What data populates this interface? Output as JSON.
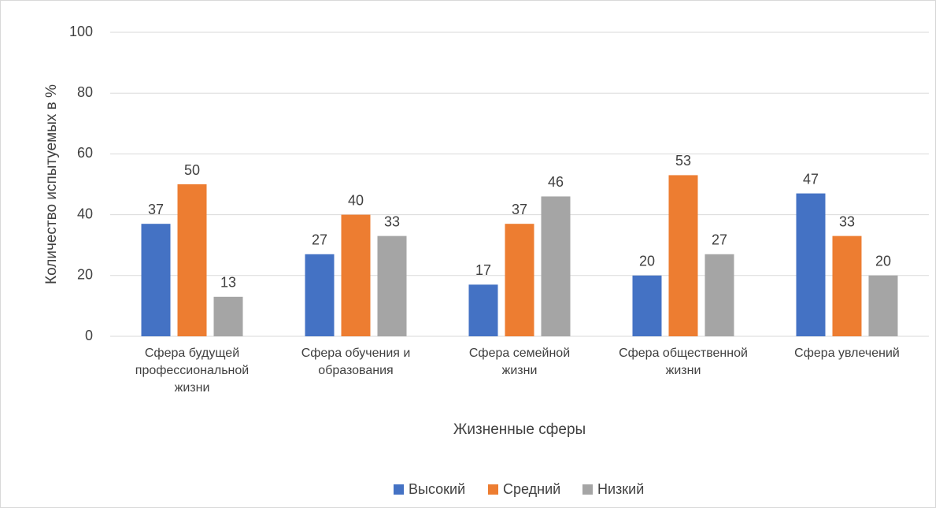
{
  "chart_data": {
    "type": "bar",
    "x_label": "Жизненные сферы",
    "y_label": "Количество испытуемых в %",
    "categories": [
      "Сфера будущей профессиональной жизни",
      "Сфера обучения и образования",
      "Сфера семейной жизни",
      "Сфера общественной жизни",
      "Сфера увлечений"
    ],
    "series": [
      {
        "name": "Высокий",
        "color": "#4472c4",
        "values": [
          37,
          27,
          17,
          20,
          47
        ]
      },
      {
        "name": "Средний",
        "color": "#ed7d31",
        "values": [
          50,
          40,
          37,
          53,
          33
        ]
      },
      {
        "name": "Низкий",
        "color": "#a5a5a5",
        "values": [
          13,
          33,
          46,
          27,
          20
        ]
      }
    ],
    "ylim": [
      0,
      100
    ],
    "yticks": [
      0,
      20,
      40,
      60,
      80,
      100
    ],
    "grid": true,
    "legend": "bottom"
  }
}
